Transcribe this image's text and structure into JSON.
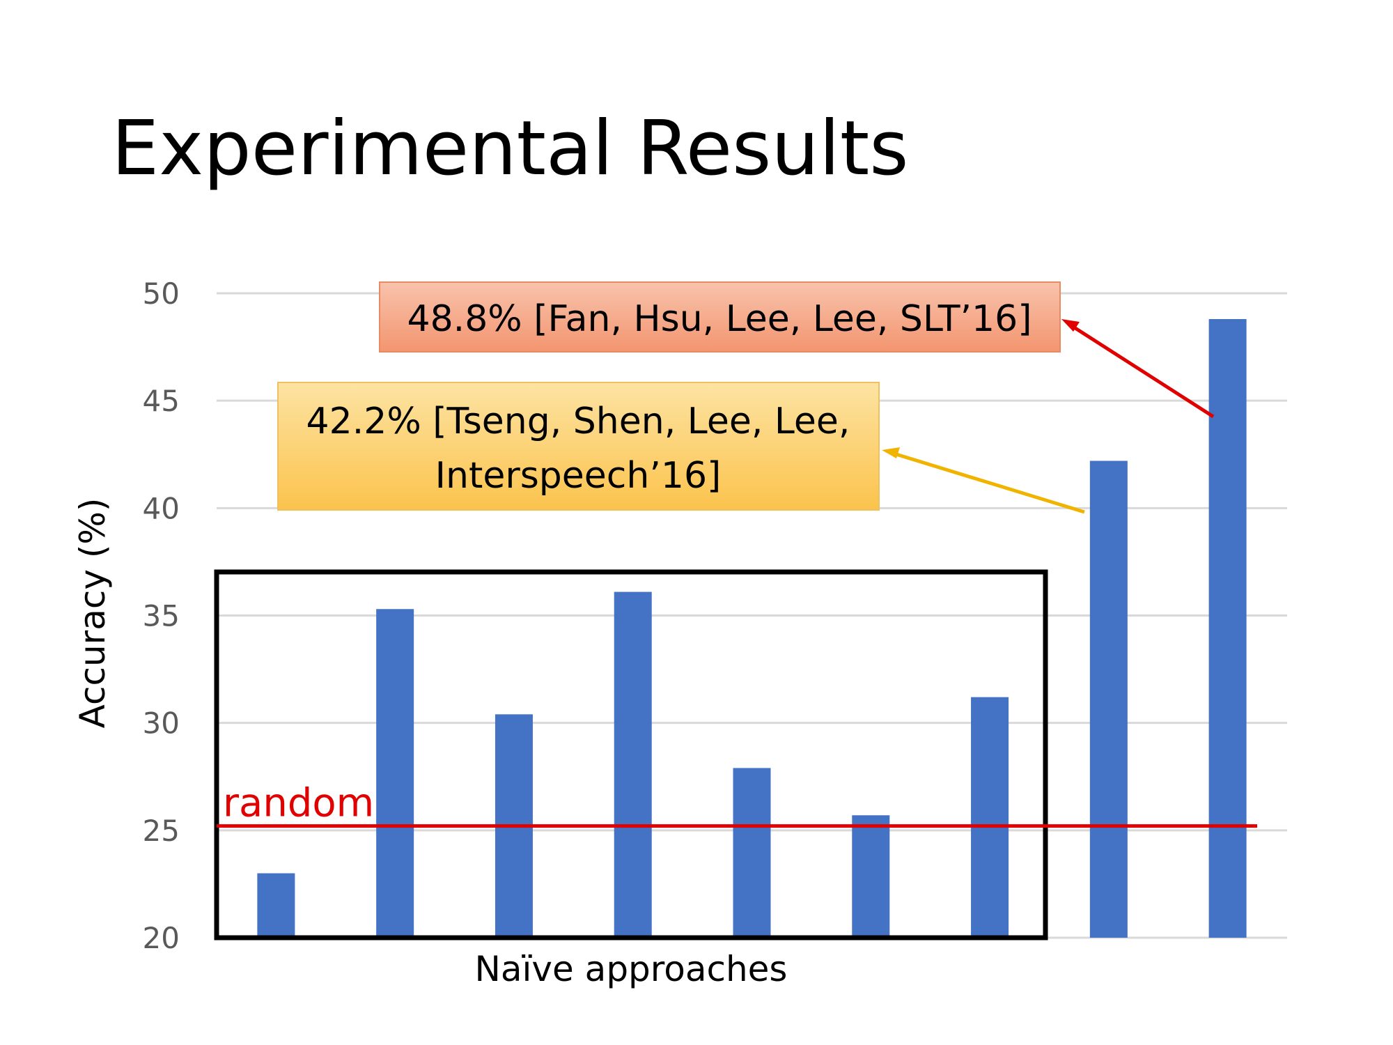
{
  "slide": {
    "title": "Experimental Results"
  },
  "chart_data": {
    "type": "bar",
    "title": "",
    "ylabel": "Accuracy (%)",
    "xlabel": "Naïve approaches",
    "ylim": [
      20,
      50
    ],
    "yticks": [
      20,
      25,
      30,
      35,
      40,
      45,
      50
    ],
    "grid": true,
    "legend": "none",
    "series": [
      {
        "values": [
          23.0,
          35.3,
          30.4,
          36.1,
          27.9,
          25.7,
          31.2,
          42.2,
          48.8
        ]
      }
    ],
    "bar_color": "#4472c4",
    "random_baseline": {
      "label": "random",
      "value": 25.2,
      "color": "#e00000"
    },
    "naive_group": {
      "label": "Naïve approaches",
      "start_index": 0,
      "end_index": 6
    },
    "annotations": [
      {
        "name": "callout-fan",
        "lines": [
          "48.8% [Fan, Hsu, Lee, Lee, SLT’16]"
        ],
        "bar_index": 8,
        "fill": "#f4a383",
        "arrow_color": "#e00000"
      },
      {
        "name": "callout-tseng",
        "lines": [
          "42.2% [Tseng, Shen, Lee, Lee,",
          "Interspeech’16]"
        ],
        "bar_index": 7,
        "fill": "#fcd073",
        "arrow_color": "#f0b400"
      }
    ]
  }
}
